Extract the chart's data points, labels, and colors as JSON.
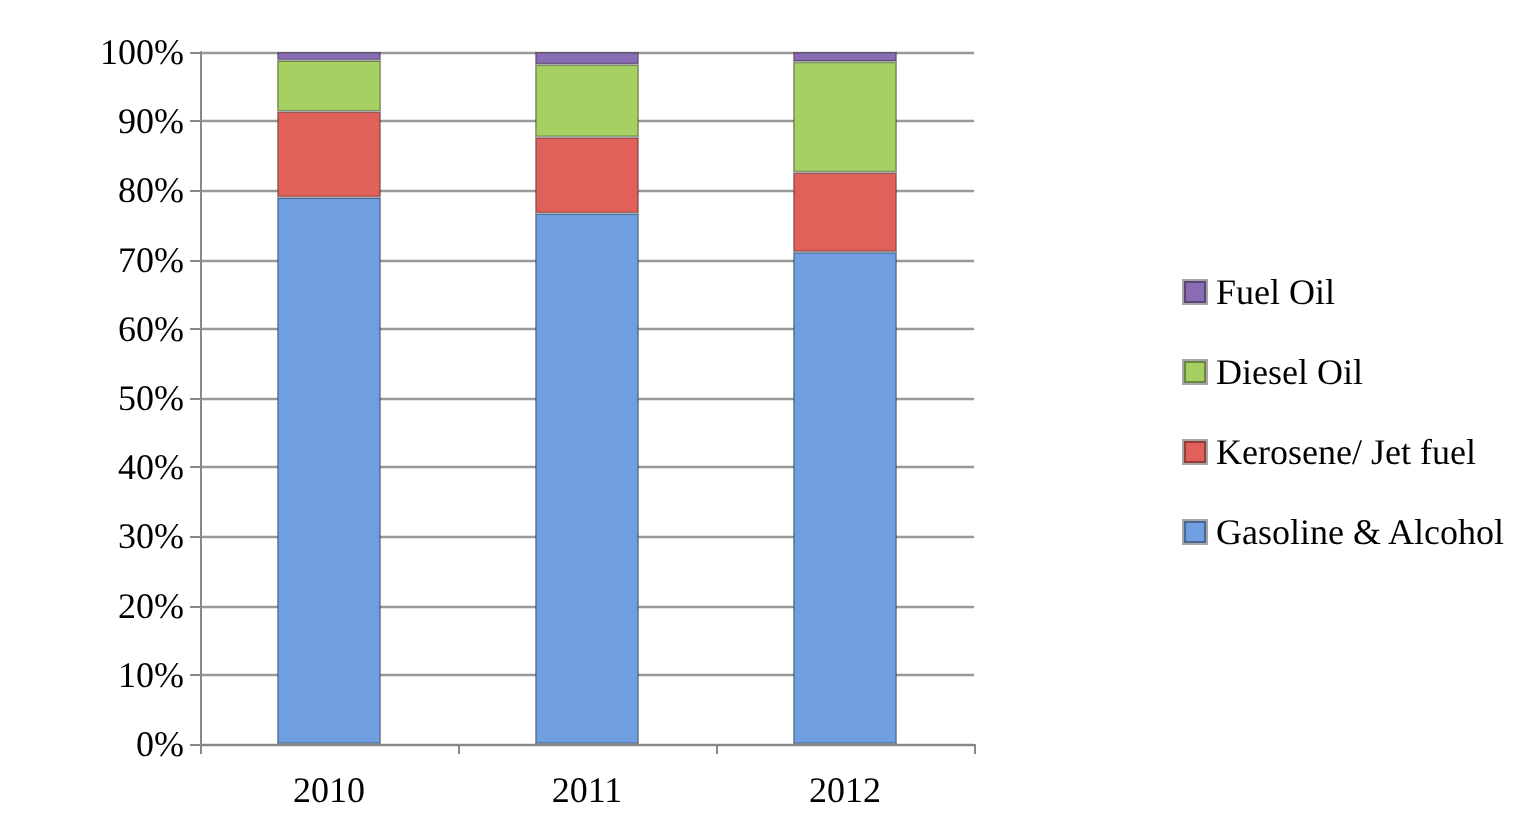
{
  "chart_data": {
    "type": "bar",
    "stacked": true,
    "categories": [
      "2010",
      "2011",
      "2012"
    ],
    "series": [
      {
        "name": "Gasoline & Alcohol",
        "color": "#6f9fe0",
        "values": [
          79.0,
          76.7,
          71.1
        ]
      },
      {
        "name": "Kerosene/ Jet fuel",
        "color": "#e0605a",
        "values": [
          12.4,
          11.0,
          11.5
        ]
      },
      {
        "name": "Diesel Oil",
        "color": "#a6d062",
        "values": [
          7.4,
          10.5,
          16.0
        ]
      },
      {
        "name": "Fuel Oil",
        "color": "#8a6db5",
        "values": [
          1.2,
          1.8,
          1.4
        ]
      }
    ],
    "ylim": [
      0,
      100
    ],
    "yticks": [
      {
        "value": 0,
        "label": "0%"
      },
      {
        "value": 10,
        "label": "10%"
      },
      {
        "value": 20,
        "label": "20%"
      },
      {
        "value": 30,
        "label": "30%"
      },
      {
        "value": 40,
        "label": "40%"
      },
      {
        "value": 50,
        "label": "50%"
      },
      {
        "value": 60,
        "label": "60%"
      },
      {
        "value": 70,
        "label": "70%"
      },
      {
        "value": 80,
        "label": "80%"
      },
      {
        "value": 90,
        "label": "90%"
      },
      {
        "value": 100,
        "label": "100%"
      }
    ],
    "grid": "y",
    "legend": "right"
  }
}
